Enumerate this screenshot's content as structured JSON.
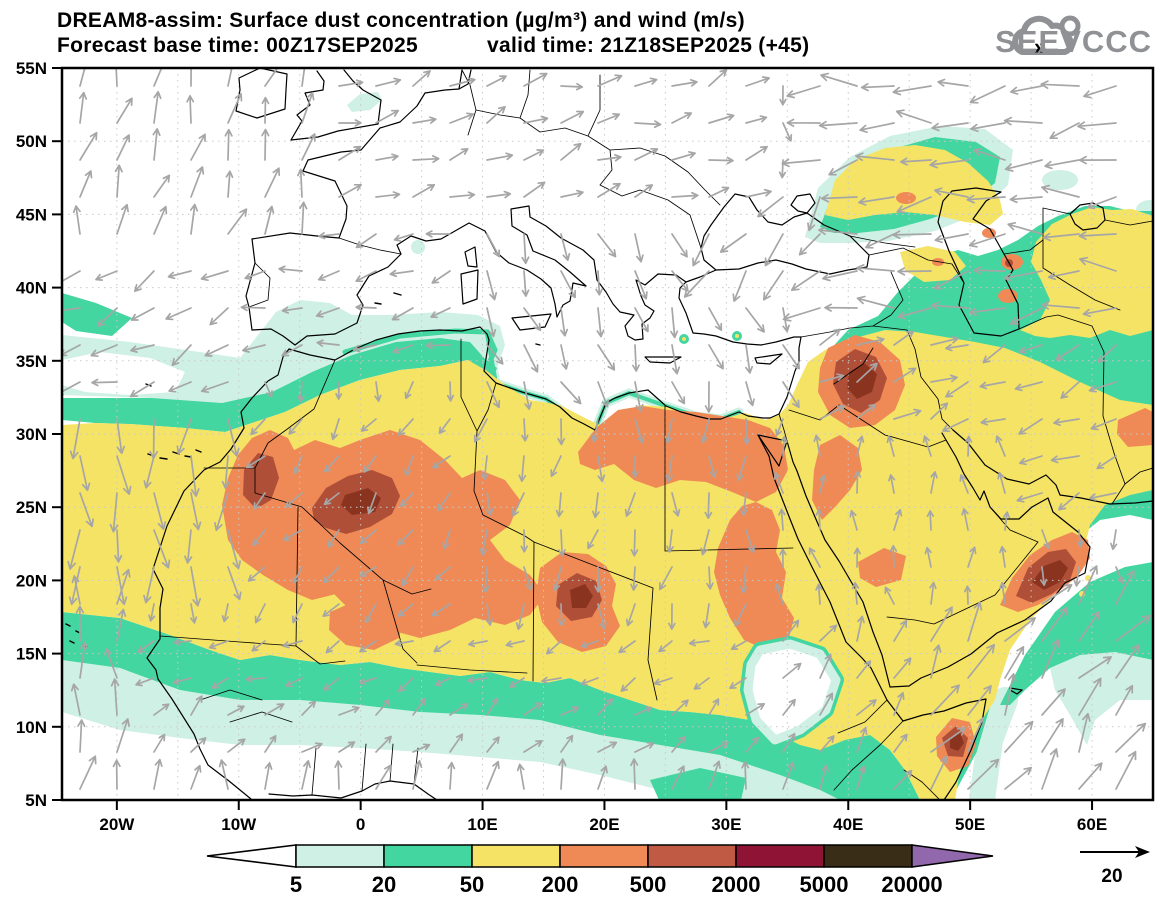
{
  "header": {
    "title": "DREAM8-assim: Surface dust concentration (µg/m³) and wind (m/s)",
    "forecast_base": "Forecast base time: 00Z17SEP2025",
    "valid_time": "valid time: 21Z18SEP2025 (+45)",
    "logo_text": "SEEVCCC",
    "logo_color": "#8f9194"
  },
  "map": {
    "lon_ticks": [
      {
        "value": -20,
        "label": "20W"
      },
      {
        "value": -10,
        "label": "10W"
      },
      {
        "value": 0,
        "label": "0"
      },
      {
        "value": 10,
        "label": "10E"
      },
      {
        "value": 20,
        "label": "20E"
      },
      {
        "value": 30,
        "label": "30E"
      },
      {
        "value": 40,
        "label": "40E"
      },
      {
        "value": 50,
        "label": "50E"
      },
      {
        "value": 60,
        "label": "60E"
      }
    ],
    "lat_ticks": [
      {
        "value": 55,
        "label": "55N"
      },
      {
        "value": 50,
        "label": "50N"
      },
      {
        "value": 45,
        "label": "45N"
      },
      {
        "value": 40,
        "label": "40N"
      },
      {
        "value": 35,
        "label": "35N"
      },
      {
        "value": 30,
        "label": "30N"
      },
      {
        "value": 25,
        "label": "25N"
      },
      {
        "value": 20,
        "label": "20N"
      },
      {
        "value": 15,
        "label": "15N"
      },
      {
        "value": 10,
        "label": "10N"
      },
      {
        "value": 5,
        "label": "5N"
      }
    ],
    "grid_step_deg": 5,
    "grid_color": "#c9c9c9",
    "coast_color": "#000000",
    "arrow_color": "#a6a6a6"
  },
  "map_palette": {
    "5": "#cff0e4",
    "20": "#43d6a1",
    "50": "#f5e365",
    "200": "#ef8a57",
    "500": "#b04f38",
    "core": "#8a3420",
    "white": "#ffffff"
  },
  "colorbar": {
    "values": [
      "5",
      "20",
      "50",
      "200",
      "500",
      "2000",
      "5000",
      "20000"
    ],
    "colors": [
      "#cff0e4",
      "#43d6a1",
      "#f5e365",
      "#ef8a57",
      "#c05a45",
      "#8e1334",
      "#3a2d17"
    ],
    "under_color": "#ffffff",
    "over_color": "#9168ac"
  },
  "wind_reference": {
    "value": "20"
  },
  "wind_field": {
    "default": {
      "dir": -90,
      "spd": 0.3
    },
    "regions": [
      {
        "name": "tropical-atlantic",
        "lon": [
          -25,
          -17
        ],
        "lat": [
          5,
          19
        ],
        "dir": 88,
        "spd": 0.7
      },
      {
        "name": "atlantic-azores",
        "lon": [
          -25,
          -10
        ],
        "lat": [
          33,
          43
        ],
        "dir": 205,
        "spd": 0.5
      },
      {
        "name": "atlantic-north",
        "lon": [
          -25,
          -3
        ],
        "lat": [
          43,
          55
        ],
        "dir": 75,
        "spd": 0.6
      },
      {
        "name": "atlantic-canary",
        "lon": [
          -25,
          -10
        ],
        "lat": [
          19,
          33
        ],
        "dir": -88,
        "spd": 0.8
      },
      {
        "name": "iberia",
        "lon": [
          -10,
          8
        ],
        "lat": [
          36,
          44
        ],
        "dir": 195,
        "spd": 0.4
      },
      {
        "name": "europe",
        "lon": [
          -3,
          33
        ],
        "lat": [
          44,
          55
        ],
        "dir": 20,
        "spd": 0.45
      },
      {
        "name": "black-sea-turkey",
        "lon": [
          26,
          38
        ],
        "lat": [
          40,
          47
        ],
        "dir": -125,
        "spd": 0.7
      },
      {
        "name": "caspian-kazakh",
        "lon": [
          36,
          65
        ],
        "lat": [
          38,
          55
        ],
        "dir": 185,
        "spd": 0.75
      },
      {
        "name": "med-east",
        "lon": [
          8,
          36
        ],
        "lat": [
          31.5,
          44
        ],
        "dir": -70,
        "spd": 0.55
      },
      {
        "name": "sahara-west",
        "lon": [
          -10,
          10
        ],
        "lat": [
          17,
          33
        ],
        "dir": -130,
        "spd": 0.35
      },
      {
        "name": "sahara-east",
        "lon": [
          10,
          33
        ],
        "lat": [
          18,
          31.5
        ],
        "dir": -95,
        "spd": 0.45
      },
      {
        "name": "sahel",
        "lon": [
          -17,
          33
        ],
        "lat": [
          12,
          18
        ],
        "dir": -155,
        "spd": 0.3
      },
      {
        "name": "guinea",
        "lon": [
          -17,
          35
        ],
        "lat": [
          8,
          12
        ],
        "dir": 40,
        "spd": 0.35
      },
      {
        "name": "gulf-of-guinea",
        "lon": [
          -25,
          35
        ],
        "lat": [
          5,
          8
        ],
        "dir": 80,
        "spd": 0.55
      },
      {
        "name": "sudan-ethiopia",
        "lon": [
          33,
          44
        ],
        "lat": [
          5,
          18
        ],
        "dir": 60,
        "spd": 0.45
      },
      {
        "name": "iraq-syria",
        "lon": [
          36,
          48
        ],
        "lat": [
          31,
          38
        ],
        "dir": 25,
        "spd": 0.5
      },
      {
        "name": "arabia",
        "lon": [
          33,
          55
        ],
        "lat": [
          17,
          31
        ],
        "dir": 95,
        "spd": 0.35
      },
      {
        "name": "iran",
        "lon": [
          45,
          65
        ],
        "lat": [
          25,
          38
        ],
        "dir": 205,
        "spd": 0.5
      },
      {
        "name": "arabian-sea",
        "lon": [
          44,
          65
        ],
        "lat": [
          5,
          20
        ],
        "dir": 55,
        "spd": 0.85
      }
    ]
  },
  "chart_data": {
    "type": "heatmap",
    "title": "DREAM8-assim: Surface dust concentration (µg/m³) and wind (m/s)",
    "units": "µg/m³",
    "wind_units": "m/s",
    "reference_wind_speed": 20,
    "levels": [
      5,
      20,
      50,
      200,
      500,
      2000,
      5000,
      20000
    ],
    "extent": {
      "lon": [
        -24.5,
        65
      ],
      "lat": [
        5,
        55
      ]
    },
    "high_dust_regions": [
      {
        "name": "SW Algeria / N Mali",
        "approx_lon": 0,
        "approx_lat": 25.5,
        "level": "500-2000"
      },
      {
        "name": "Morocco Atlantic coast",
        "approx_lon": -10,
        "approx_lat": 28.5,
        "level": "500-2000"
      },
      {
        "name": "Chad (Bodele)",
        "approx_lon": 17,
        "approx_lat": 18,
        "level": "500-2000"
      },
      {
        "name": "Iraq",
        "approx_lon": 42.5,
        "approx_lat": 32.5,
        "level": "500-2000"
      },
      {
        "name": "Oman coast",
        "approx_lon": 56.5,
        "approx_lat": 20.5,
        "level": "500-2000"
      },
      {
        "name": "NE Somalia",
        "approx_lon": 48.5,
        "approx_lat": 10,
        "level": "500-2000"
      },
      {
        "name": "Libya-Egypt coast band",
        "approx_lon": 25,
        "approx_lat": 29,
        "level": "200-500"
      }
    ]
  }
}
